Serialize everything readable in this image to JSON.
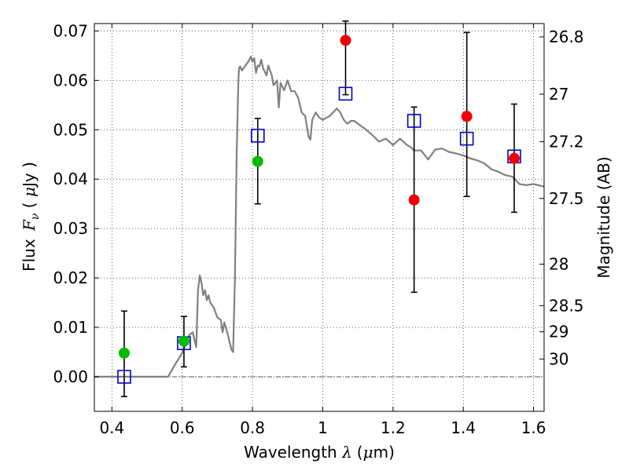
{
  "chart_data": {
    "type": "scatter",
    "xlabel": "Wavelength  λ (μm)",
    "xlabel_parts": {
      "text": "Wavelength ",
      "lambda": "λ",
      "unit_open": "(",
      "mu": "μ",
      "unit_rest": "m)"
    },
    "ylabel_parts": {
      "prefix": "Flux ",
      "symbol": "F",
      "sub": "ν",
      "paren_open": " ( ",
      "mu": "μ",
      "unit": "Jy )"
    },
    "ylabel_right": "Magnitude (AB)",
    "xlim": [
      0.35,
      1.63
    ],
    "ylim": [
      -0.007,
      0.0715
    ],
    "grid": true,
    "x_ticks": [
      0.4,
      0.6,
      0.8,
      1.0,
      1.2,
      1.4,
      1.6
    ],
    "x_tick_labels": [
      "0.4",
      "0.6",
      "0.8",
      "1",
      "1.2",
      "1.4",
      "1.6"
    ],
    "y_ticks": [
      0.0,
      0.01,
      0.02,
      0.03,
      0.04,
      0.05,
      0.06,
      0.07
    ],
    "y_tick_labels": [
      "0.00",
      "0.01",
      "0.02",
      "0.03",
      "0.04",
      "0.05",
      "0.06",
      "0.07"
    ],
    "mag_ticks": [
      {
        "label": "26.8",
        "flux": 0.0688
      },
      {
        "label": "27",
        "flux": 0.0572
      },
      {
        "label": "27.2",
        "flux": 0.0476
      },
      {
        "label": "27.5",
        "flux": 0.0361
      },
      {
        "label": "28",
        "flux": 0.0228
      },
      {
        "label": "28.5",
        "flux": 0.0144
      },
      {
        "label": "29",
        "flux": 0.0091
      },
      {
        "label": "30",
        "flux": 0.0036
      }
    ],
    "baseline_y": 0.0,
    "series": [
      {
        "name": "model-sed",
        "kind": "line",
        "color": "#808080",
        "x": [
          0.35,
          0.56,
          0.58,
          0.6,
          0.62,
          0.63,
          0.64,
          0.645,
          0.65,
          0.655,
          0.66,
          0.665,
          0.67,
          0.675,
          0.68,
          0.69,
          0.7,
          0.71,
          0.715,
          0.72,
          0.73,
          0.74,
          0.745,
          0.75,
          0.755,
          0.76,
          0.762,
          0.765,
          0.77,
          0.78,
          0.79,
          0.795,
          0.8,
          0.805,
          0.81,
          0.815,
          0.82,
          0.825,
          0.83,
          0.84,
          0.845,
          0.85,
          0.855,
          0.86,
          0.87,
          0.875,
          0.88,
          0.89,
          0.9,
          0.91,
          0.92,
          0.93,
          0.94,
          0.95,
          0.96,
          0.965,
          0.97,
          0.98,
          0.99,
          1.0,
          1.02,
          1.04,
          1.05,
          1.06,
          1.07,
          1.08,
          1.09,
          1.1,
          1.12,
          1.14,
          1.16,
          1.18,
          1.2,
          1.22,
          1.24,
          1.25,
          1.26,
          1.28,
          1.3,
          1.32,
          1.34,
          1.36,
          1.38,
          1.4,
          1.42,
          1.44,
          1.46,
          1.48,
          1.5,
          1.52,
          1.54,
          1.56,
          1.58,
          1.6,
          1.63
        ],
        "y": [
          0.0,
          0.0,
          0.0025,
          0.0048,
          0.0085,
          0.009,
          0.006,
          0.0175,
          0.0205,
          0.019,
          0.0165,
          0.0175,
          0.0155,
          0.0165,
          0.015,
          0.014,
          0.012,
          0.0115,
          0.009,
          0.011,
          0.0085,
          0.0055,
          0.005,
          0.02,
          0.045,
          0.06,
          0.0625,
          0.0628,
          0.062,
          0.063,
          0.064,
          0.0648,
          0.0638,
          0.0645,
          0.0615,
          0.063,
          0.0628,
          0.0642,
          0.0625,
          0.061,
          0.063,
          0.062,
          0.061,
          0.059,
          0.06,
          0.0545,
          0.0595,
          0.058,
          0.06,
          0.0578,
          0.0578,
          0.0565,
          0.0535,
          0.0528,
          0.0485,
          0.048,
          0.052,
          0.0535,
          0.0525,
          0.052,
          0.0528,
          0.0543,
          0.0535,
          0.052,
          0.0512,
          0.0518,
          0.0518,
          0.0512,
          0.0502,
          0.049,
          0.0476,
          0.0482,
          0.0469,
          0.0482,
          0.0469,
          0.0465,
          0.0458,
          0.0458,
          0.044,
          0.046,
          0.0462,
          0.0455,
          0.0452,
          0.0448,
          0.0442,
          0.0438,
          0.0432,
          0.042,
          0.0415,
          0.0408,
          0.0405,
          0.039,
          0.0388,
          0.039,
          0.0385
        ]
      },
      {
        "name": "model-photometry",
        "kind": "open-square",
        "color": "#0000cc",
        "x": [
          0.435,
          0.605,
          0.815,
          1.065,
          1.26,
          1.41,
          1.545
        ],
        "y": [
          0.0,
          0.0068,
          0.0488,
          0.0573,
          0.0518,
          0.0482,
          0.0446
        ]
      },
      {
        "name": "detections-green",
        "kind": "filled-circle",
        "color": "#00bb00",
        "x": [
          0.435,
          0.605,
          0.815
        ],
        "y": [
          0.0048,
          0.0072,
          0.0436
        ],
        "yerr_low": [
          -0.004,
          0.002,
          0.035
        ],
        "yerr_high": [
          0.0133,
          0.0122,
          0.0523
        ]
      },
      {
        "name": "detections-red",
        "kind": "filled-circle",
        "color": "#ee0000",
        "x": [
          1.065,
          1.26,
          1.41,
          1.545
        ],
        "y": [
          0.0681,
          0.0358,
          0.0527,
          0.0442
        ],
        "yerr_low": [
          0.0571,
          0.0171,
          0.0365,
          0.0333
        ],
        "yerr_high": [
          0.072,
          0.0546,
          0.0697,
          0.0552
        ]
      }
    ]
  }
}
